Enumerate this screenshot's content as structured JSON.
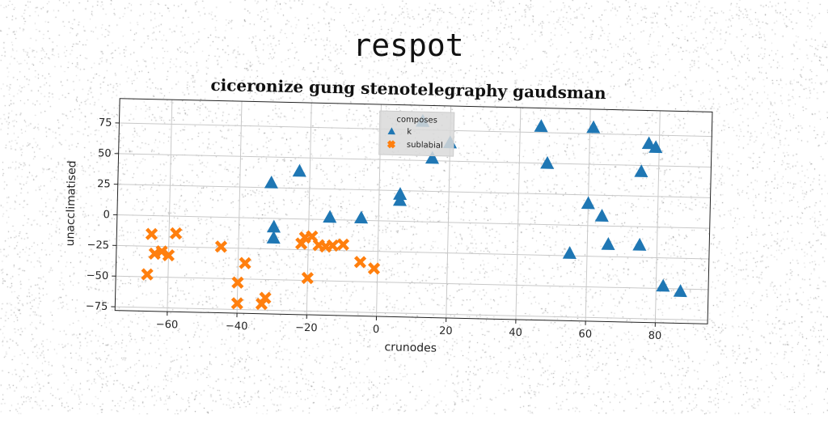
{
  "header": {
    "title": "respot"
  },
  "chart_data": {
    "type": "scatter",
    "title": "ciceronize gung stenotelegraphy gaudsman",
    "xlabel": "crunodes",
    "ylabel": "unacclimatised",
    "xlim": [
      -75,
      95
    ],
    "ylim": [
      -78,
      95
    ],
    "xticks": [
      -60,
      -40,
      -20,
      0,
      20,
      40,
      60,
      80
    ],
    "yticks": [
      -75,
      -50,
      -25,
      0,
      25,
      50,
      75
    ],
    "grid": true,
    "legend": {
      "title": "composes",
      "placement": "top-center"
    },
    "series": [
      {
        "name": "k",
        "marker": "triangle",
        "color": "#1f77b4",
        "points": [
          [
            46,
            80
          ],
          [
            61,
            80
          ],
          [
            77,
            68
          ],
          [
            79,
            65
          ],
          [
            75,
            45
          ],
          [
            48,
            50
          ],
          [
            60,
            18
          ],
          [
            64,
            8
          ],
          [
            66,
            -15
          ],
          [
            75,
            -15
          ],
          [
            55,
            -23
          ],
          [
            82,
            -48
          ],
          [
            87,
            -52
          ],
          [
            12,
            82
          ],
          [
            15,
            52
          ],
          [
            20,
            65
          ],
          [
            6,
            22
          ],
          [
            6,
            17
          ],
          [
            -14,
            2
          ],
          [
            -5,
            2
          ],
          [
            -23,
            39
          ],
          [
            -31,
            29
          ],
          [
            -30,
            -7
          ],
          [
            -30,
            -16
          ]
        ]
      },
      {
        "name": "sublabial",
        "marker": "x",
        "color": "#ff7f0e",
        "points": [
          [
            -65,
            -15
          ],
          [
            -58,
            -14
          ],
          [
            -64,
            -31
          ],
          [
            -62,
            -29
          ],
          [
            -60,
            -32
          ],
          [
            -66,
            -48
          ],
          [
            -45,
            -24
          ],
          [
            -38,
            -37
          ],
          [
            -40,
            -53
          ],
          [
            -40,
            -70
          ],
          [
            -32,
            -65
          ],
          [
            -33,
            -70
          ],
          [
            -22,
            -20
          ],
          [
            -21,
            -15
          ],
          [
            -19,
            -14
          ],
          [
            -17,
            -21
          ],
          [
            -15,
            -22
          ],
          [
            -13,
            -21
          ],
          [
            -10,
            -20
          ],
          [
            -20,
            -48
          ],
          [
            -5,
            -34
          ],
          [
            -1,
            -39
          ]
        ]
      }
    ]
  }
}
